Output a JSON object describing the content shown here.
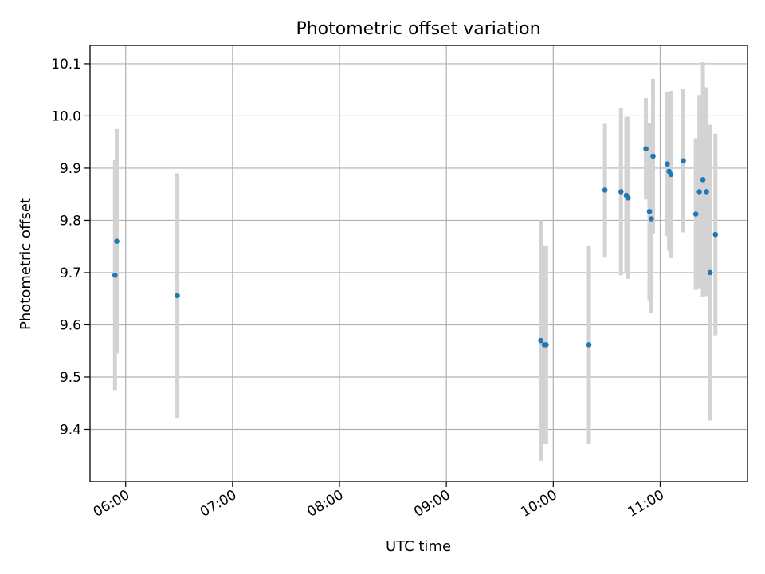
{
  "chart_data": {
    "type": "scatter",
    "title": "Photometric offset variation",
    "xlabel": "UTC time",
    "ylabel": "Photometric offset",
    "xlim": [
      "05:40",
      "11:49"
    ],
    "ylim": [
      9.3,
      10.135
    ],
    "x_ticks": [
      "06:00",
      "07:00",
      "08:00",
      "09:00",
      "10:00",
      "11:00"
    ],
    "y_ticks": [
      "9.4",
      "9.5",
      "9.6",
      "9.7",
      "9.8",
      "9.9",
      "10.0",
      "10.1"
    ],
    "grid": true,
    "points": [
      {
        "x": "05:54",
        "y": 9.695,
        "err": 0.22
      },
      {
        "x": "05:55",
        "y": 9.76,
        "err": 0.215
      },
      {
        "x": "06:29",
        "y": 9.656,
        "err": 0.234
      },
      {
        "x": "09:53",
        "y": 9.57,
        "err": 0.23
      },
      {
        "x": "09:55",
        "y": 9.562,
        "err": 0.19
      },
      {
        "x": "09:56",
        "y": 9.562,
        "err": 0.19
      },
      {
        "x": "10:20",
        "y": 9.562,
        "err": 0.19
      },
      {
        "x": "10:29",
        "y": 9.858,
        "err": 0.128
      },
      {
        "x": "10:38",
        "y": 9.855,
        "err": 0.16
      },
      {
        "x": "10:41",
        "y": 9.848,
        "err": 0.15
      },
      {
        "x": "10:42",
        "y": 9.843,
        "err": 0.155
      },
      {
        "x": "10:52",
        "y": 9.937,
        "err": 0.097
      },
      {
        "x": "10:54",
        "y": 9.817,
        "err": 0.17
      },
      {
        "x": "10:55",
        "y": 9.803,
        "err": 0.18
      },
      {
        "x": "10:56",
        "y": 9.923,
        "err": 0.148
      },
      {
        "x": "11:04",
        "y": 9.908,
        "err": 0.138
      },
      {
        "x": "11:05",
        "y": 9.894,
        "err": 0.152
      },
      {
        "x": "11:06",
        "y": 9.888,
        "err": 0.16
      },
      {
        "x": "11:13",
        "y": 9.914,
        "err": 0.137
      },
      {
        "x": "11:20",
        "y": 9.812,
        "err": 0.145
      },
      {
        "x": "11:22",
        "y": 9.855,
        "err": 0.185
      },
      {
        "x": "11:24",
        "y": 9.878,
        "err": 0.225
      },
      {
        "x": "11:26",
        "y": 9.855,
        "err": 0.2
      },
      {
        "x": "11:28",
        "y": 9.7,
        "err": 0.283
      },
      {
        "x": "11:31",
        "y": 9.773,
        "err": 0.193
      }
    ],
    "colors": {
      "point": "#1f77b4",
      "errorbar": "#d3d3d3",
      "grid": "#b0b0b0",
      "frame": "#000000"
    }
  }
}
